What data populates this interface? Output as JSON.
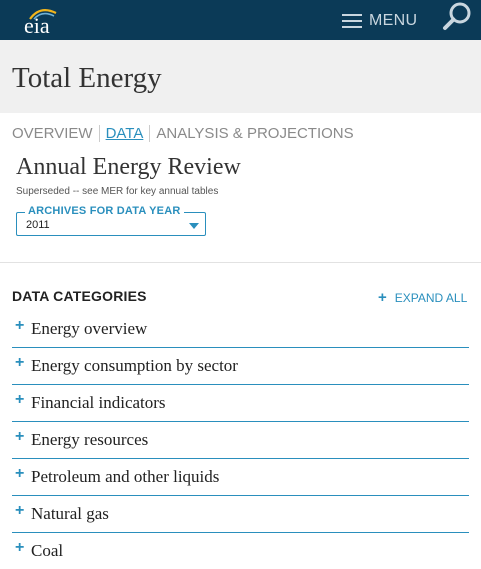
{
  "header": {
    "logo_text": "eia",
    "menu_label": "MENU",
    "colors": {
      "bar": "#0b3a57",
      "accent": "#2a8fbd"
    }
  },
  "page_title": "Total Energy",
  "tabs": [
    {
      "label": "OVERVIEW",
      "active": false
    },
    {
      "label": "DATA",
      "active": true
    },
    {
      "label": "ANALYSIS & PROJECTIONS",
      "active": false
    }
  ],
  "review": {
    "title": "Annual Energy Review",
    "subtitle": "Superseded -- see MER for key annual tables"
  },
  "archive": {
    "legend": "ARCHIVES FOR DATA YEAR",
    "selected": "2011"
  },
  "categories": {
    "heading": "DATA CATEGORIES",
    "expand_all": "EXPAND ALL",
    "items": [
      {
        "label": "Energy overview"
      },
      {
        "label": "Energy consumption by sector"
      },
      {
        "label": "Financial indicators"
      },
      {
        "label": "Energy resources"
      },
      {
        "label": "Petroleum and other liquids"
      },
      {
        "label": "Natural gas"
      },
      {
        "label": "Coal"
      }
    ]
  },
  "icons": [
    "eia-logo-icon",
    "hamburger-icon",
    "search-icon",
    "plus-icon",
    "chevron-down-icon"
  ]
}
